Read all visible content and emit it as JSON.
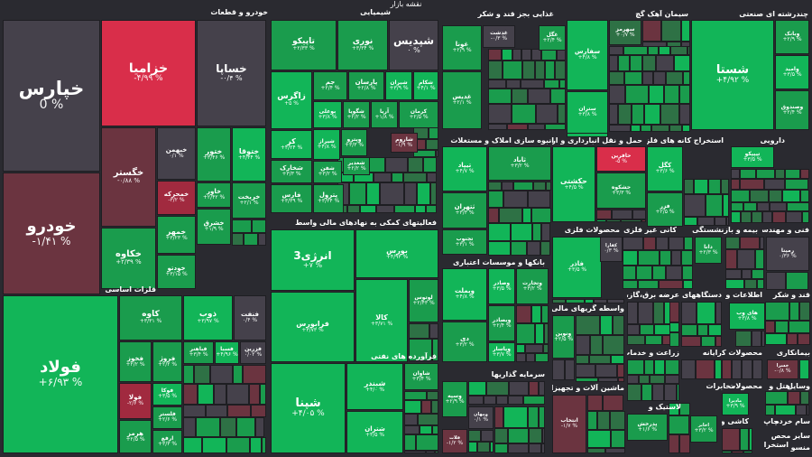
{
  "title": "نقشه بازار",
  "colors": {
    "up_strong": "#12b558",
    "up": "#1a9c4d",
    "up_weak": "#2e7145",
    "flat": "#45414b",
    "down_weak": "#6b3440",
    "down": "#a12a3f",
    "down_strong": "#d92e4a"
  },
  "chart_data": {
    "type": "treemap",
    "sectors": [
      {
        "name": "خودرو و قطعات",
        "tiles": [
          {
            "symbol": "خپارس",
            "change": "0 %"
          },
          {
            "symbol": "خزامیا",
            "change": "-۴/۹۹ %"
          },
          {
            "symbol": "خساپا",
            "change": "-۰/۴ %"
          },
          {
            "symbol": "خودرو",
            "change": "-۱/۴۱ %"
          },
          {
            "symbol": "خگستر",
            "change": "-۰/۸۸ %"
          },
          {
            "symbol": "خبهمن",
            "change": "۰/۱ %"
          },
          {
            "symbol": "خمحرکه",
            "change": "-۳/۲ %"
          },
          {
            "symbol": "خکاوه",
            "change": "+۲/۳۹ %"
          },
          {
            "symbol": "خمهر",
            "change": "+۳/۲۳ %"
          },
          {
            "symbol": "خودتو",
            "change": "+۳/۱۵ %"
          },
          {
            "symbol": "ختور",
            "change": "+۳/۴۶ %"
          },
          {
            "symbol": "ختوقا",
            "change": "+۴/۴۴ %"
          },
          {
            "symbol": "خاور",
            "change": "+۲/۴۲ %"
          },
          {
            "symbol": "خشرق",
            "change": "+۱/۹ %"
          },
          {
            "symbol": "خریخت",
            "change": "+۲/۱ %"
          }
        ]
      },
      {
        "name": "فلزات اساسی",
        "tiles": [
          {
            "symbol": "فولاد",
            "change": "+۶/۹۳ %"
          },
          {
            "symbol": "کاوه",
            "change": "+۳/۳۱ %"
          },
          {
            "symbol": "ذوب",
            "change": "+۳/۹۷ %"
          },
          {
            "symbol": "فنفت",
            "change": "۰/۴ %"
          },
          {
            "symbol": "فخوز",
            "change": "+۲/۲ %"
          },
          {
            "symbol": "فروژ",
            "change": "+۲/۲ %"
          },
          {
            "symbol": "فباهنر",
            "change": "+۳/۴ %"
          },
          {
            "symbol": "فسبا",
            "change": "+۴/۹۶ %"
          },
          {
            "symbol": "فزرین",
            "change": "۰/۰۲ %"
          },
          {
            "symbol": "فولا",
            "change": "-۲/۶ %"
          },
          {
            "symbol": "فوکا",
            "change": "+۳/۵ %"
          },
          {
            "symbol": "فلستر",
            "change": "+۲/۶ %"
          },
          {
            "symbol": "هرمز",
            "change": "+۲/۵ %"
          },
          {
            "symbol": "ارفع",
            "change": "+۳/۳ %"
          }
        ]
      },
      {
        "name": "شیمیایی",
        "tiles": [
          {
            "symbol": "تاپیکو",
            "change": "+۲/۳۳ %"
          },
          {
            "symbol": "نوری",
            "change": "+۳/۳۴ %"
          },
          {
            "symbol": "شپدیس",
            "change": "۰ %"
          },
          {
            "symbol": "زاگرس",
            "change": "+۵ %"
          },
          {
            "symbol": "جم",
            "change": "+۲/۴ %"
          },
          {
            "symbol": "پارسان",
            "change": "+۲/۸ %"
          },
          {
            "symbol": "شیران",
            "change": "+۳/۹ %"
          },
          {
            "symbol": "شکام",
            "change": "+۴/۱ %"
          },
          {
            "symbol": "بوعلی",
            "change": "+۳/۸ %"
          },
          {
            "symbol": "شگویا",
            "change": "+۲/۲ %"
          },
          {
            "symbol": "آریا",
            "change": "+۱/۸ %"
          },
          {
            "symbol": "کرمان",
            "change": "+۲/۵ %"
          },
          {
            "symbol": "کر",
            "change": "+۴/۲۴ %"
          },
          {
            "symbol": "شیراز",
            "change": "+۴/۸ %"
          },
          {
            "symbol": "وپترو",
            "change": "+۳/۳ %"
          },
          {
            "symbol": "شاروم",
            "change": "-۱/۹ %"
          },
          {
            "symbol": "شخارک",
            "change": "+۳/۳ %"
          },
          {
            "symbol": "شفن",
            "change": "+۳/۲ %"
          },
          {
            "symbol": "شغدیر",
            "change": "+۲/۲ %"
          },
          {
            "symbol": "فارس",
            "change": "+۳/۳۹ %"
          },
          {
            "symbol": "پترول",
            "change": "+۳/۳۴ %"
          }
        ]
      },
      {
        "name": "فعالیتهای کمکی به نهادهای مالی واسط",
        "tiles": [
          {
            "symbol": "انرژی3",
            "change": "+۷ %"
          },
          {
            "symbol": "بورس",
            "change": "+۴/۹۳ %"
          },
          {
            "symbol": "فرابورس",
            "change": "+۳/۷۳ %"
          },
          {
            "symbol": "کالا",
            "change": "+۳/۷۱ %"
          },
          {
            "symbol": "لوتوس",
            "change": "+۲/۴۳ %"
          }
        ]
      },
      {
        "name": "فرآورده های نفتی",
        "tiles": [
          {
            "symbol": "شپنا",
            "change": "+۴/۰۵ %"
          },
          {
            "symbol": "شبندر",
            "change": "+۴/۰ %"
          },
          {
            "symbol": "شاوان",
            "change": "+۳/۴ %"
          },
          {
            "symbol": "شتران",
            "change": "+۳/۵ %"
          }
        ]
      },
      {
        "name": "غذایی بجز قند و شکر",
        "tiles": [
          {
            "symbol": "غونا",
            "change": "+۲/۹ %"
          },
          {
            "symbol": "غدشت",
            "change": "-۰/۳ %"
          },
          {
            "symbol": "غگل",
            "change": "+۲/۴ %"
          },
          {
            "symbol": "غدیس",
            "change": "+۲/۱ %"
          }
        ]
      },
      {
        "name": "سیمان آهک گچ",
        "tiles": [
          {
            "symbol": "سهرمز",
            "change": "+۰/۷ %"
          },
          {
            "symbol": "سفارس",
            "change": "+۴/۸ %"
          },
          {
            "symbol": "ارزش",
            "change": "-۰/۳ %"
          },
          {
            "symbol": "ارزشتان",
            "change": "+۴/۴ %"
          },
          {
            "symbol": "ستران",
            "change": "+۳/۸ %"
          }
        ]
      },
      {
        "name": "چندرشته ای صنعتی",
        "tiles": [
          {
            "symbol": "شستا",
            "change": "+۴/۹۲ %"
          },
          {
            "symbol": "وبانک",
            "change": "+۲/۹ %"
          },
          {
            "symbol": "وامید",
            "change": "+۳/۵ %"
          },
          {
            "symbol": "ومعادن",
            "change": "+۴/۴ %"
          },
          {
            "symbol": "وصندوق",
            "change": "+۲/۴ %"
          }
        ]
      },
      {
        "name": "انبوه سازی املاک و مستغلات",
        "tiles": [
          {
            "symbol": "ثاباد",
            "change": "+۳/۲ %"
          },
          {
            "symbol": "تیپاد",
            "change": "+۴/۷ %"
          },
          {
            "symbol": "ثتهران",
            "change": "+۳/۳ %"
          },
          {
            "symbol": "ثنوسا",
            "change": "+۳/۳ %"
          },
          {
            "symbol": "تجنوب",
            "change": "+۳/۱ %"
          }
        ]
      },
      {
        "name": "حمل و نقل انبارداری و ارتباطات",
        "tiles": [
          {
            "symbol": "حکشتی",
            "change": "+۴/۵ %"
          },
          {
            "symbol": "حافرین",
            "change": "-۵ %"
          },
          {
            "symbol": "حشکوه",
            "change": "+۳/۳ %"
          }
        ]
      },
      {
        "name": "استخراج کانه های فلزی",
        "tiles": [
          {
            "symbol": "ومعادن",
            "change": "+۳/۳ %"
          },
          {
            "symbol": "کگل",
            "change": "+۳/۶ %"
          },
          {
            "symbol": "فزر",
            "change": "+۲/۵ %"
          }
        ]
      },
      {
        "name": "دارویی",
        "tiles": [
          {
            "symbol": "تیپیکو",
            "change": "+۳/۵ %"
          }
        ]
      },
      {
        "name": "بانکها و موسسات اعتباری",
        "tiles": [
          {
            "symbol": "وبملت",
            "change": "+۴/۸ %"
          },
          {
            "symbol": "وصادر",
            "change": "+۳/۵ %"
          },
          {
            "symbol": "وتجارت",
            "change": "+۳/۲ %"
          },
          {
            "symbol": "وبصادر",
            "change": "+۲/۴ %"
          },
          {
            "symbol": "دی",
            "change": "+۳/۲ %"
          },
          {
            "symbol": "وپاسار",
            "change": "+۳/۷ %"
          }
        ]
      },
      {
        "name": "محصولات فلزی",
        "tiles": [
          {
            "symbol": "فاذر",
            "change": "+۳/۵ %"
          }
        ]
      },
      {
        "name": "کانی غیر فلزی",
        "tiles": [
          {
            "symbol": "کفارا",
            "change": "۰/۳ %"
          }
        ]
      },
      {
        "name": "بیمه و بازنشستگی",
        "tiles": [
          {
            "symbol": "دانا",
            "change": "+۲/۳ %"
          }
        ]
      },
      {
        "name": "فنی و مهندسی",
        "tiles": [
          {
            "symbol": "رمپنا",
            "change": "۰/۳۶ %"
          }
        ]
      },
      {
        "name": "واسطه گریهای مالی و پولی",
        "tiles": [
          {
            "symbol": "ونوین",
            "change": "+۲/۵ %"
          }
        ]
      },
      {
        "name": "سرمایه گذاریها",
        "tiles": [
          {
            "symbol": "وسپه",
            "change": "+۲/۹ %"
          },
          {
            "symbol": "ومهان",
            "change": "۰/۱ %"
          },
          {
            "symbol": "فلات",
            "change": "-۱/۲ %"
          }
        ]
      },
      {
        "name": "ماشین آلات و تجهیزات",
        "tiles": [
          {
            "symbol": "انتخاب",
            "change": "-۱/۷ %"
          }
        ]
      },
      {
        "name": "عرضه برق،گاز،بخار",
        "tiles": []
      },
      {
        "name": "دستگاههای",
        "tiles": []
      },
      {
        "name": "اطلاعات و",
        "tiles": [
          {
            "symbol": "های وب",
            "change": "+۳/۸ %"
          }
        ]
      },
      {
        "name": "قند و شکر",
        "tiles": []
      },
      {
        "name": "زراعت و خدمات",
        "tiles": []
      },
      {
        "name": "رایانه",
        "tiles": []
      },
      {
        "name": "محصولات کاغذی",
        "tiles": []
      },
      {
        "name": "بیمانکاری",
        "tiles": [
          {
            "symbol": "خسرا",
            "change": "-۰/۸ %"
          }
        ]
      },
      {
        "name": "لاستیک و",
        "tiles": [
          {
            "symbol": "پدرخش",
            "change": "+۱/۶ %"
          }
        ]
      },
      {
        "name": "مخابرات",
        "tiles": [
          {
            "symbol": "اخابر",
            "change": "+۳/۲ %"
          }
        ]
      },
      {
        "name": "محصولات",
        "tiles": [
          {
            "symbol": "مادیرا",
            "change": "+۳/۹ %"
          }
        ]
      },
      {
        "name": "هتل و",
        "tiles": []
      },
      {
        "name": "وسایل",
        "tiles": []
      },
      {
        "name": "کاشی و",
        "tiles": []
      },
      {
        "name": "چاپ",
        "tiles": []
      },
      {
        "name": "سایر محص",
        "tiles": []
      },
      {
        "name": "منسو",
        "tiles": []
      },
      {
        "name": "استخرا",
        "tiles": []
      },
      {
        "name": "سام خرده",
        "tiles": []
      }
    ]
  }
}
